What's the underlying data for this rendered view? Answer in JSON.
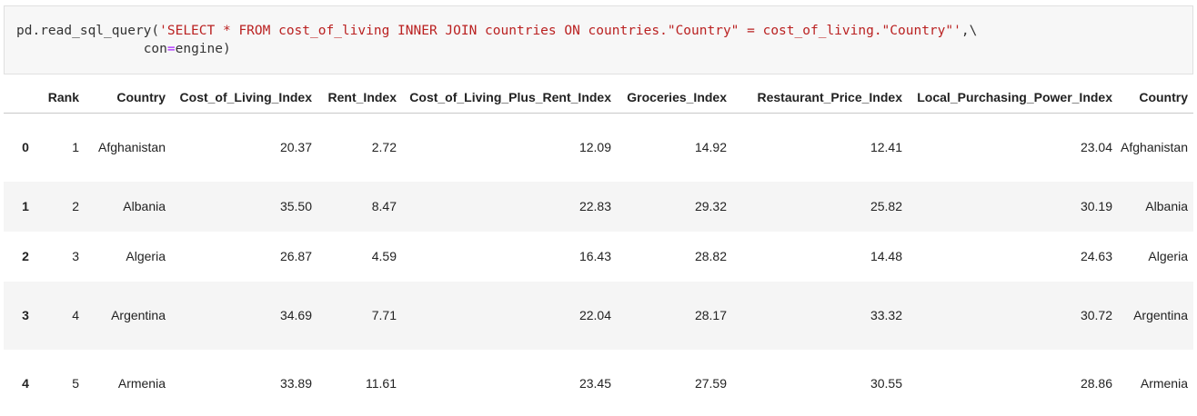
{
  "code_cell": {
    "line1": {
      "prefix": "pd.read_sql_query(",
      "string": "'SELECT * FROM cost_of_living INNER JOIN countries ON countries.\"Country\" = cost_of_living.\"Country\"'",
      "suffix": ",\\"
    },
    "line2": {
      "indent": "                ",
      "param": "con",
      "op": "=",
      "value": "engine)"
    }
  },
  "table": {
    "columns": {
      "rank": "Rank",
      "country": "Country",
      "cost_of_living_index": "Cost_of_Living_Index",
      "rent_index": "Rent_Index",
      "cost_of_living_plus_rent_index": "Cost_of_Living_Plus_Rent_Index",
      "groceries_index": "Groceries_Index",
      "restaurant_price_index": "Restaurant_Price_Index",
      "local_purchasing_power_index": "Local_Purchasing_Power_Index",
      "country2": "Country"
    },
    "rows": [
      {
        "idx": "0",
        "rank": "1",
        "country": "Afghanistan",
        "col": "20.37",
        "rent": "2.72",
        "colpr": "12.09",
        "groc": "14.92",
        "rest": "12.41",
        "lpp": "23.04",
        "country2": "Afghanistan"
      },
      {
        "idx": "1",
        "rank": "2",
        "country": "Albania",
        "col": "35.50",
        "rent": "8.47",
        "colpr": "22.83",
        "groc": "29.32",
        "rest": "25.82",
        "lpp": "30.19",
        "country2": "Albania"
      },
      {
        "idx": "2",
        "rank": "3",
        "country": "Algeria",
        "col": "26.87",
        "rent": "4.59",
        "colpr": "16.43",
        "groc": "28.82",
        "rest": "14.48",
        "lpp": "24.63",
        "country2": "Algeria"
      },
      {
        "idx": "3",
        "rank": "4",
        "country": "Argentina",
        "col": "34.69",
        "rent": "7.71",
        "colpr": "22.04",
        "groc": "28.17",
        "rest": "33.32",
        "lpp": "30.72",
        "country2": "Argentina"
      },
      {
        "idx": "4",
        "rank": "5",
        "country": "Armenia",
        "col": "33.89",
        "rent": "11.61",
        "colpr": "23.45",
        "groc": "27.59",
        "rest": "30.55",
        "lpp": "28.86",
        "country2": "Armenia"
      }
    ]
  }
}
